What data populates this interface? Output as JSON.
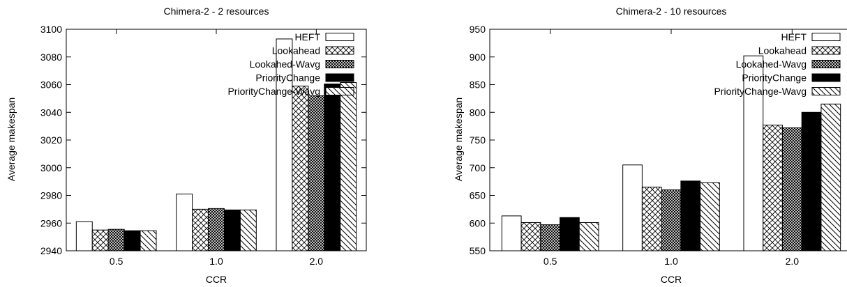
{
  "chart_data": [
    {
      "type": "bar",
      "title": "Chimera-2 - 2 resources",
      "xlabel": "CCR",
      "ylabel": "Average makespan",
      "categories": [
        "0.5",
        "1.0",
        "2.0"
      ],
      "ylim": [
        2940,
        3100
      ],
      "yticks": [
        "2940",
        "2960",
        "2980",
        "3000",
        "3020",
        "3040",
        "3060",
        "3080",
        "3100"
      ],
      "grid": false,
      "legend_position": "top-right",
      "series": [
        {
          "name": "HEFT",
          "pattern": "white",
          "values": [
            2961,
            2981,
            3093
          ]
        },
        {
          "name": "Lookahead",
          "pattern": "cross",
          "values": [
            2955,
            2970,
            3059
          ]
        },
        {
          "name": "Lookahed-Wavg",
          "pattern": "dense-cross",
          "values": [
            2955.5,
            2970.5,
            3052
          ]
        },
        {
          "name": "PriorityChange",
          "pattern": "black",
          "values": [
            2954.5,
            2969.5,
            3060.5
          ]
        },
        {
          "name": "PriorityChange-Wavg",
          "pattern": "diagonal",
          "values": [
            2954.5,
            2969.5,
            3061.5
          ]
        }
      ]
    },
    {
      "type": "bar",
      "title": "Chimera-2 - 10 resources",
      "xlabel": "CCR",
      "ylabel": "Average makespan",
      "categories": [
        "0.5",
        "1.0",
        "2.0"
      ],
      "ylim": [
        550,
        950
      ],
      "yticks": [
        "550",
        "600",
        "650",
        "700",
        "750",
        "800",
        "850",
        "900",
        "950"
      ],
      "grid": false,
      "legend_position": "top-right",
      "series": [
        {
          "name": "HEFT",
          "pattern": "white",
          "values": [
            613,
            705,
            902
          ]
        },
        {
          "name": "Lookahead",
          "pattern": "cross",
          "values": [
            601,
            665,
            777
          ]
        },
        {
          "name": "Lookahed-Wavg",
          "pattern": "dense-cross",
          "values": [
            597,
            660,
            772
          ]
        },
        {
          "name": "PriorityChange",
          "pattern": "black",
          "values": [
            610,
            676,
            800
          ]
        },
        {
          "name": "PriorityChange-Wavg",
          "pattern": "diagonal",
          "values": [
            601,
            673,
            815
          ]
        }
      ]
    }
  ]
}
